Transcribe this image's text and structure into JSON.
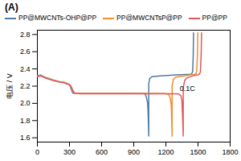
{
  "chart_data": {
    "type": "line",
    "title": "(A)",
    "ylabel": "电压 / V",
    "xlim": [
      0,
      1800
    ],
    "ylim": [
      1.55,
      2.85
    ],
    "xticks": [
      0,
      300,
      600,
      900,
      1200,
      1500,
      1800
    ],
    "yticks": [
      1.6,
      1.8,
      {
        "value": 2.0,
        "label": "2.0"
      },
      2.2,
      2.4,
      2.6,
      2.8
    ],
    "grid": false,
    "legend": "upper left",
    "annotations": [
      {
        "text": "0.1C",
        "x": 1330,
        "y": 2.17
      }
    ],
    "series": [
      {
        "name": "PP@MWCNTs-OHP@PP",
        "x": [
          0,
          30,
          80,
          150,
          200,
          250,
          270,
          290,
          300,
          305,
          310,
          315,
          320,
          325,
          330,
          340,
          380,
          500,
          700,
          900,
          1000,
          1010,
          1020,
          1030,
          1035,
          1040,
          1040,
          1050,
          1070,
          1150,
          1300,
          1380,
          1420,
          1440,
          1450,
          1455,
          1458
        ],
        "values": [
          2.32,
          2.33,
          2.3,
          2.27,
          2.255,
          2.245,
          2.235,
          2.225,
          2.215,
          2.2,
          2.19,
          2.17,
          2.155,
          2.135,
          2.12,
          2.115,
          2.115,
          2.115,
          2.115,
          2.115,
          2.113,
          2.1,
          2.06,
          2.0,
          1.85,
          1.62,
          2.23,
          2.29,
          2.31,
          2.32,
          2.33,
          2.335,
          2.335,
          2.34,
          2.37,
          2.55,
          2.82
        ]
      },
      {
        "name": "PP@MWCNTsP@PP",
        "x": [
          0,
          30,
          80,
          150,
          200,
          250,
          270,
          295,
          305,
          312,
          318,
          324,
          330,
          338,
          345,
          360,
          500,
          700,
          900,
          1100,
          1200,
          1230,
          1240,
          1250,
          1255,
          1258,
          1258,
          1270,
          1290,
          1380,
          1430,
          1460,
          1480,
          1488,
          1495,
          1498
        ],
        "values": [
          2.315,
          2.325,
          2.295,
          2.268,
          2.252,
          2.242,
          2.232,
          2.222,
          2.212,
          2.2,
          2.185,
          2.165,
          2.148,
          2.13,
          2.118,
          2.115,
          2.115,
          2.115,
          2.115,
          2.115,
          2.113,
          2.1,
          2.06,
          1.98,
          1.78,
          1.62,
          2.2,
          2.28,
          2.305,
          2.32,
          2.33,
          2.335,
          2.34,
          2.38,
          2.58,
          2.82
        ]
      },
      {
        "name": "PP@PP",
        "x": [
          0,
          30,
          80,
          150,
          200,
          250,
          270,
          295,
          308,
          315,
          322,
          330,
          340,
          350,
          365,
          400,
          500,
          700,
          900,
          1100,
          1300,
          1320,
          1340,
          1350,
          1358,
          1362,
          1362,
          1375,
          1395,
          1450,
          1480,
          1500,
          1510,
          1522,
          1530,
          1533
        ],
        "values": [
          2.31,
          2.32,
          2.29,
          2.265,
          2.249,
          2.239,
          2.228,
          2.218,
          2.208,
          2.195,
          2.175,
          2.155,
          2.136,
          2.12,
          2.115,
          2.112,
          2.112,
          2.112,
          2.112,
          2.112,
          2.112,
          2.108,
          2.09,
          2.03,
          1.78,
          1.62,
          2.18,
          2.265,
          2.295,
          2.318,
          2.328,
          2.332,
          2.338,
          2.36,
          2.6,
          2.82
        ]
      }
    ]
  }
}
